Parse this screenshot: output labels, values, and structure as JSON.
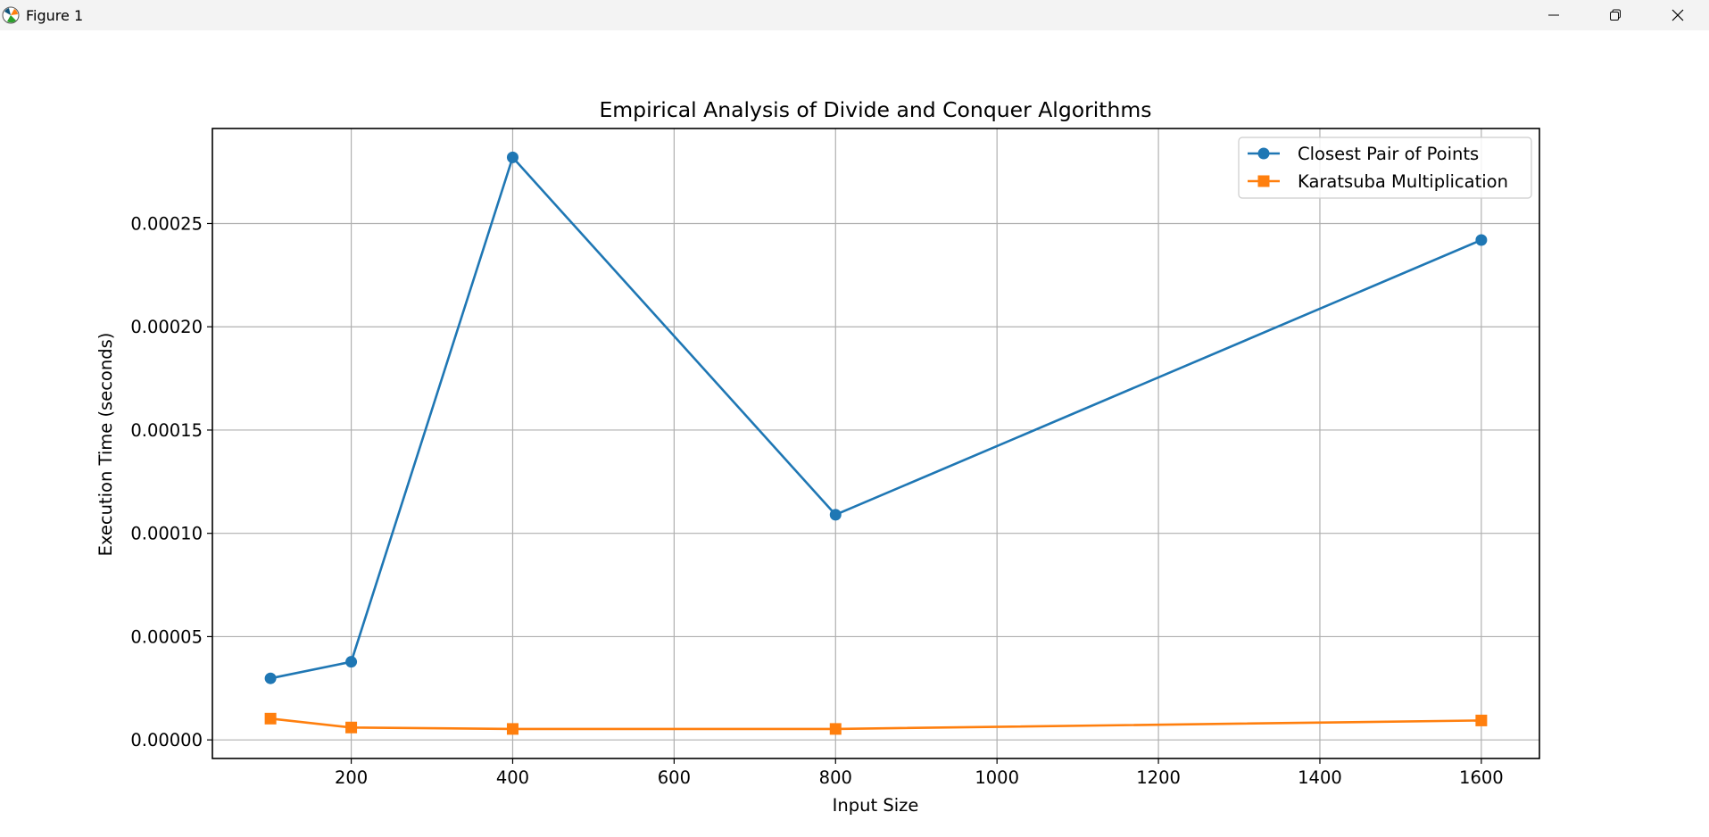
{
  "window": {
    "title": "Figure 1"
  },
  "colors": {
    "series1": "#1f77b4",
    "series2": "#ff7f0e",
    "grid": "#b0b0b0"
  },
  "chart_data": {
    "type": "line",
    "title": "Empirical Analysis of Divide and Conquer Algorithms",
    "xlabel": "Input Size",
    "ylabel": "Execution Time (seconds)",
    "xlim": [
      28,
      1672
    ],
    "ylim": [
      -9e-06,
      0.000296
    ],
    "xticks": [
      200,
      400,
      600,
      800,
      1000,
      1200,
      1400,
      1600
    ],
    "xtick_labels": [
      "200",
      "400",
      "600",
      "800",
      "1000",
      "1200",
      "1400",
      "1600"
    ],
    "yticks": [
      0,
      5e-05,
      0.0001,
      0.00015,
      0.0002,
      0.00025
    ],
    "ytick_labels": [
      "0.00000",
      "0.00005",
      "0.00010",
      "0.00015",
      "0.00020",
      "0.00025"
    ],
    "grid": true,
    "legend_position": "top-right",
    "x": [
      100,
      200,
      400,
      800,
      1600
    ],
    "series": [
      {
        "name": "Closest Pair of Points",
        "marker": "circle",
        "color": "#1f77b4",
        "values": [
          2.98e-05,
          3.78e-05,
          0.000282,
          0.000109,
          0.000242
        ]
      },
      {
        "name": "Karatsuba Multiplication",
        "marker": "square",
        "color": "#ff7f0e",
        "values": [
          1.03e-05,
          6e-06,
          5.3e-06,
          5.3e-06,
          9.4e-06
        ]
      }
    ]
  }
}
